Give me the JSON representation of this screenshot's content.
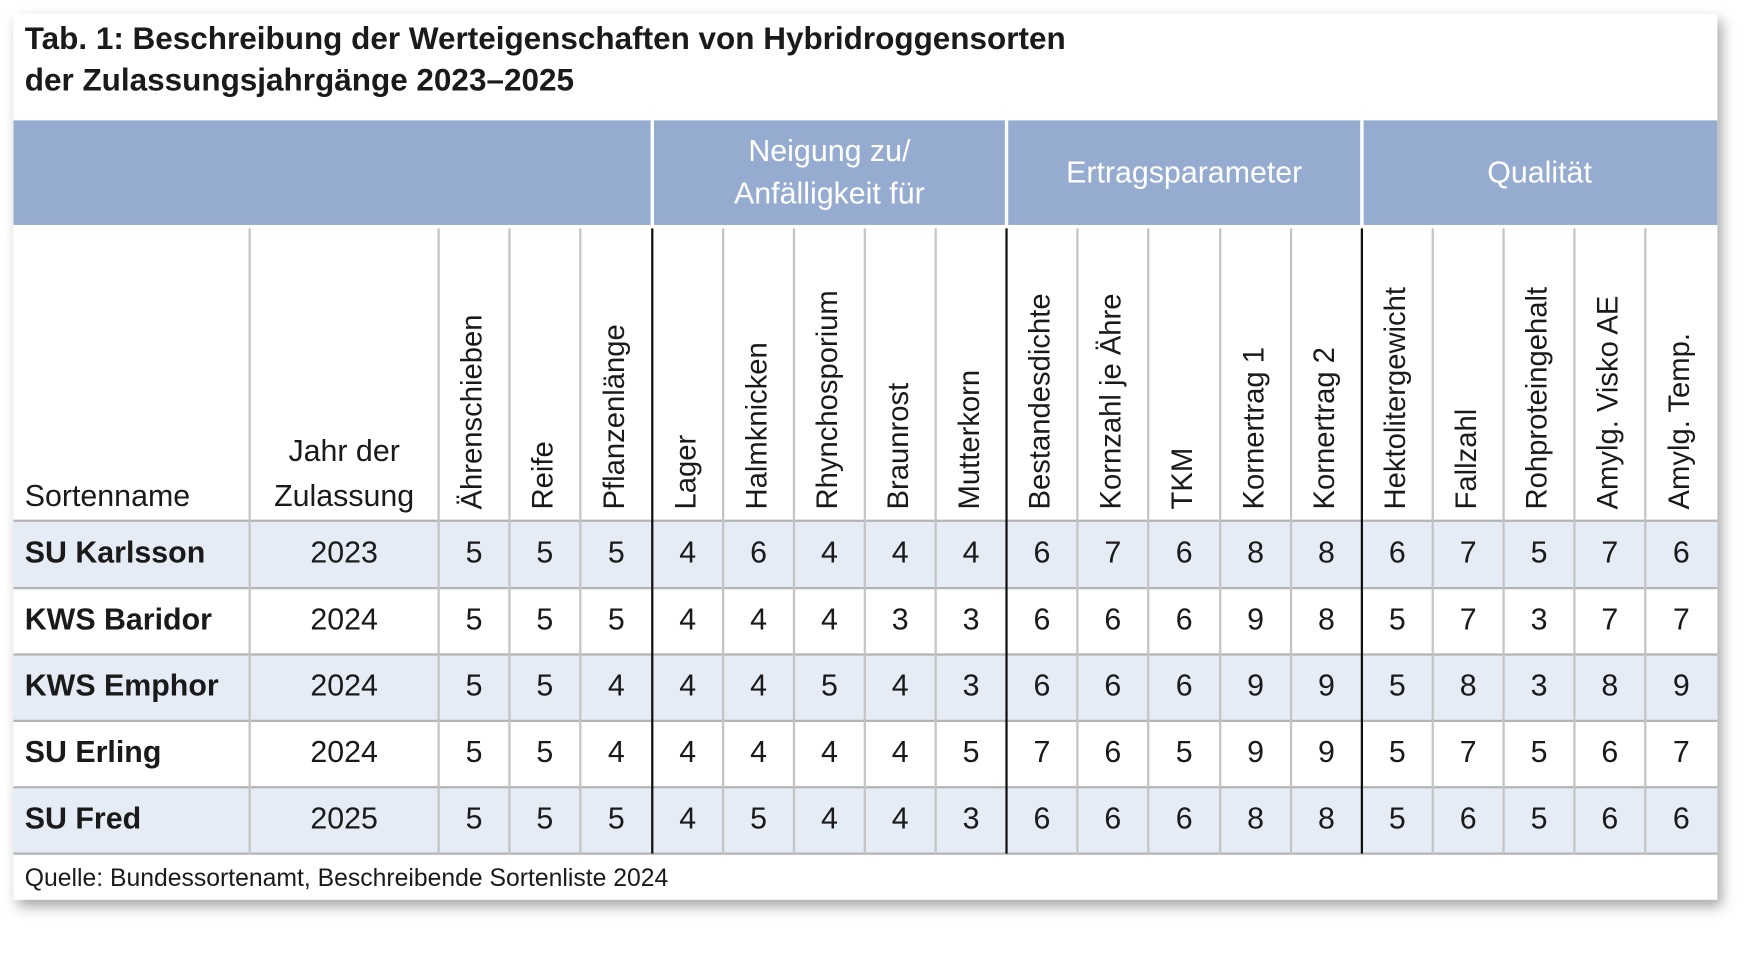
{
  "title": [
    "Tab. 1: Beschreibung der Werteigenschaften von Hybridroggensorten",
    "der Zulassungsjahrgänge 2023–2025"
  ],
  "table": {
    "groups": [
      [
        "Neigung zu/",
        "Anfälligkeit für"
      ],
      [
        "Ertragsparameter"
      ],
      [
        "Qualität"
      ]
    ],
    "columns": [
      [
        "Sortenname"
      ],
      [
        "Jahr der",
        "Zulassung"
      ],
      "Ährenschieben",
      "Reife",
      "Pflanzenlänge",
      "Lager",
      "Halmknicken",
      "Rhynchosporium",
      "Braunrost",
      "Mutterkorn",
      "Bestandesdichte",
      "Kornzahl je Ähre",
      "TKM",
      "Kornertrag 1",
      "Kornertrag 2",
      "Hektolitergewicht",
      "Fallzahl",
      "Rohproteingehalt",
      "Amylg. Visko AE",
      "Amylg. Temp."
    ],
    "rows": [
      [
        "SU Karlsson",
        2023,
        5,
        5,
        5,
        4,
        6,
        4,
        4,
        4,
        6,
        7,
        6,
        8,
        8,
        6,
        7,
        5,
        7,
        6
      ],
      [
        "KWS Baridor",
        2024,
        5,
        5,
        5,
        4,
        4,
        4,
        3,
        3,
        6,
        6,
        6,
        9,
        8,
        5,
        7,
        3,
        7,
        7
      ],
      [
        "KWS Emphor",
        2024,
        5,
        5,
        4,
        4,
        4,
        5,
        4,
        3,
        6,
        6,
        6,
        9,
        9,
        5,
        8,
        3,
        8,
        9
      ],
      [
        "SU Erling",
        2024,
        5,
        5,
        4,
        4,
        4,
        4,
        4,
        5,
        7,
        6,
        5,
        9,
        9,
        5,
        7,
        5,
        6,
        7
      ],
      [
        "SU Fred",
        2025,
        5,
        5,
        5,
        4,
        5,
        4,
        4,
        3,
        6,
        6,
        6,
        8,
        8,
        5,
        6,
        5,
        6,
        6
      ]
    ]
  },
  "source": "Quelle: Bundessortenamt, Beschreibende Sortenliste 2024"
}
